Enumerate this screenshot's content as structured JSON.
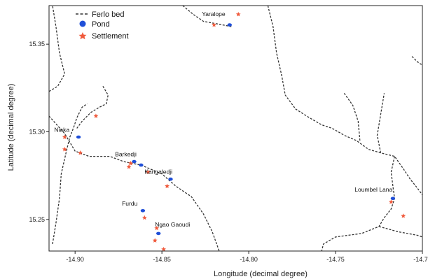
{
  "chart_data": {
    "type": "scatter",
    "title": "",
    "xlabel": "Longitude (decimal degree)",
    "ylabel": "Latitude (decimal degree)",
    "xlim": [
      -14.915,
      -14.7
    ],
    "ylim": [
      15.232,
      15.372
    ],
    "x_ticks": [
      -14.9,
      -14.85,
      -14.8,
      -14.75,
      -14.7
    ],
    "x_tick_labels": [
      "-14.90",
      "-14.85",
      "-14.80",
      "-14.75",
      "-14.70"
    ],
    "y_ticks": [
      15.25,
      15.3,
      15.35
    ],
    "y_tick_labels": [
      "15.25",
      "15.30",
      "15.35"
    ],
    "grid": false,
    "legend_position": "top-left",
    "legend": [
      {
        "key": "ferlo",
        "label": "Ferlo bed",
        "style": "dashed-line",
        "color": "#333333"
      },
      {
        "key": "pond",
        "label": "Pond",
        "style": "circle",
        "color": "#1f4fd8"
      },
      {
        "key": "settlement",
        "label": "Settlement",
        "style": "star",
        "color": "#f05a3c"
      }
    ],
    "ferlo_bed": [
      [
        [
          -14.915,
          15.309
        ],
        [
          -14.906,
          15.299
        ],
        [
          -14.9,
          15.289
        ],
        [
          -14.892,
          15.286
        ],
        [
          -14.88,
          15.286
        ],
        [
          -14.872,
          15.283
        ],
        [
          -14.862,
          15.281
        ],
        [
          -14.85,
          15.276
        ],
        [
          -14.842,
          15.269
        ],
        [
          -14.833,
          15.263
        ],
        [
          -14.826,
          15.253
        ],
        [
          -14.821,
          15.243
        ],
        [
          -14.817,
          15.232
        ]
      ],
      [
        [
          -14.913,
          15.236
        ],
        [
          -14.911,
          15.248
        ],
        [
          -14.909,
          15.262
        ],
        [
          -14.908,
          15.276
        ],
        [
          -14.905,
          15.289
        ],
        [
          -14.903,
          15.297
        ],
        [
          -14.901,
          15.302
        ],
        [
          -14.899,
          15.308
        ],
        [
          -14.896,
          15.314
        ],
        [
          -14.893,
          15.316
        ]
      ],
      [
        [
          -14.899,
          15.302
        ],
        [
          -14.896,
          15.306
        ],
        [
          -14.891,
          15.311
        ],
        [
          -14.886,
          15.314
        ],
        [
          -14.882,
          15.316
        ],
        [
          -14.881,
          15.321
        ],
        [
          -14.884,
          15.326
        ]
      ],
      [
        [
          -14.915,
          15.323
        ],
        [
          -14.91,
          15.326
        ],
        [
          -14.906,
          15.333
        ],
        [
          -14.909,
          15.345
        ],
        [
          -14.911,
          15.36
        ],
        [
          -14.913,
          15.372
        ]
      ],
      [
        [
          -14.838,
          15.372
        ],
        [
          -14.832,
          15.367
        ],
        [
          -14.826,
          15.363
        ],
        [
          -14.815,
          15.361
        ],
        [
          -14.81,
          15.36
        ]
      ],
      [
        [
          -14.789,
          15.372
        ],
        [
          -14.786,
          15.36
        ],
        [
          -14.784,
          15.345
        ],
        [
          -14.781,
          15.332
        ],
        [
          -14.779,
          15.321
        ],
        [
          -14.773,
          15.313
        ],
        [
          -14.765,
          15.308
        ],
        [
          -14.758,
          15.304
        ],
        [
          -14.752,
          15.302
        ],
        [
          -14.745,
          15.298
        ],
        [
          -14.738,
          15.295
        ],
        [
          -14.731,
          15.29
        ],
        [
          -14.724,
          15.288
        ],
        [
          -14.716,
          15.286
        ],
        [
          -14.711,
          15.279
        ],
        [
          -14.707,
          15.273
        ],
        [
          -14.703,
          15.268
        ],
        [
          -14.7,
          15.264
        ]
      ],
      [
        [
          -14.736,
          15.295
        ],
        [
          -14.737,
          15.306
        ],
        [
          -14.74,
          15.315
        ],
        [
          -14.745,
          15.322
        ]
      ],
      [
        [
          -14.724,
          15.288
        ],
        [
          -14.726,
          15.298
        ],
        [
          -14.724,
          15.31
        ],
        [
          -14.722,
          15.322
        ]
      ],
      [
        [
          -14.716,
          15.286
        ],
        [
          -14.718,
          15.277
        ],
        [
          -14.717,
          15.269
        ],
        [
          -14.716,
          15.262
        ],
        [
          -14.718,
          15.256
        ],
        [
          -14.722,
          15.251
        ],
        [
          -14.725,
          15.246
        ],
        [
          -14.735,
          15.242
        ],
        [
          -14.75,
          15.24
        ],
        [
          -14.757,
          15.236
        ],
        [
          -14.758,
          15.232
        ]
      ],
      [
        [
          -14.725,
          15.246
        ],
        [
          -14.714,
          15.243
        ],
        [
          -14.703,
          15.241
        ],
        [
          -14.7,
          15.24
        ]
      ],
      [
        [
          -14.706,
          15.343
        ],
        [
          -14.703,
          15.34
        ],
        [
          -14.7,
          15.338
        ]
      ]
    ],
    "ponds": [
      {
        "x": -14.811,
        "y": 15.361
      },
      {
        "x": -14.898,
        "y": 15.297
      },
      {
        "x": -14.866,
        "y": 15.283
      },
      {
        "x": -14.862,
        "y": 15.281
      },
      {
        "x": -14.845,
        "y": 15.273
      },
      {
        "x": -14.861,
        "y": 15.255
      },
      {
        "x": -14.852,
        "y": 15.242
      },
      {
        "x": -14.717,
        "y": 15.262
      }
    ],
    "settlements": [
      {
        "x": -14.806,
        "y": 15.367
      },
      {
        "x": -14.82,
        "y": 15.361
      },
      {
        "x": -14.888,
        "y": 15.309
      },
      {
        "x": -14.906,
        "y": 15.297
      },
      {
        "x": -14.906,
        "y": 15.29
      },
      {
        "x": -14.897,
        "y": 15.288
      },
      {
        "x": -14.868,
        "y": 15.282
      },
      {
        "x": -14.869,
        "y": 15.28
      },
      {
        "x": -14.858,
        "y": 15.277
      },
      {
        "x": -14.847,
        "y": 15.269
      },
      {
        "x": -14.86,
        "y": 15.251
      },
      {
        "x": -14.853,
        "y": 15.245
      },
      {
        "x": -14.854,
        "y": 15.238
      },
      {
        "x": -14.849,
        "y": 15.233
      },
      {
        "x": -14.718,
        "y": 15.26
      },
      {
        "x": -14.711,
        "y": 15.252
      }
    ],
    "places": [
      {
        "name": "Yaralope",
        "x": -14.827,
        "y": 15.366
      },
      {
        "name": "Niaka",
        "x": -14.912,
        "y": 15.3
      },
      {
        "name": "Barkedji",
        "x": -14.877,
        "y": 15.286
      },
      {
        "name": "Kangaledji",
        "x": -14.86,
        "y": 15.276
      },
      {
        "name": "Furdu",
        "x": -14.873,
        "y": 15.258
      },
      {
        "name": "Ngao Gaoudi",
        "x": -14.854,
        "y": 15.246
      },
      {
        "name": "Loumbel Lana",
        "x": -14.739,
        "y": 15.266
      }
    ]
  }
}
